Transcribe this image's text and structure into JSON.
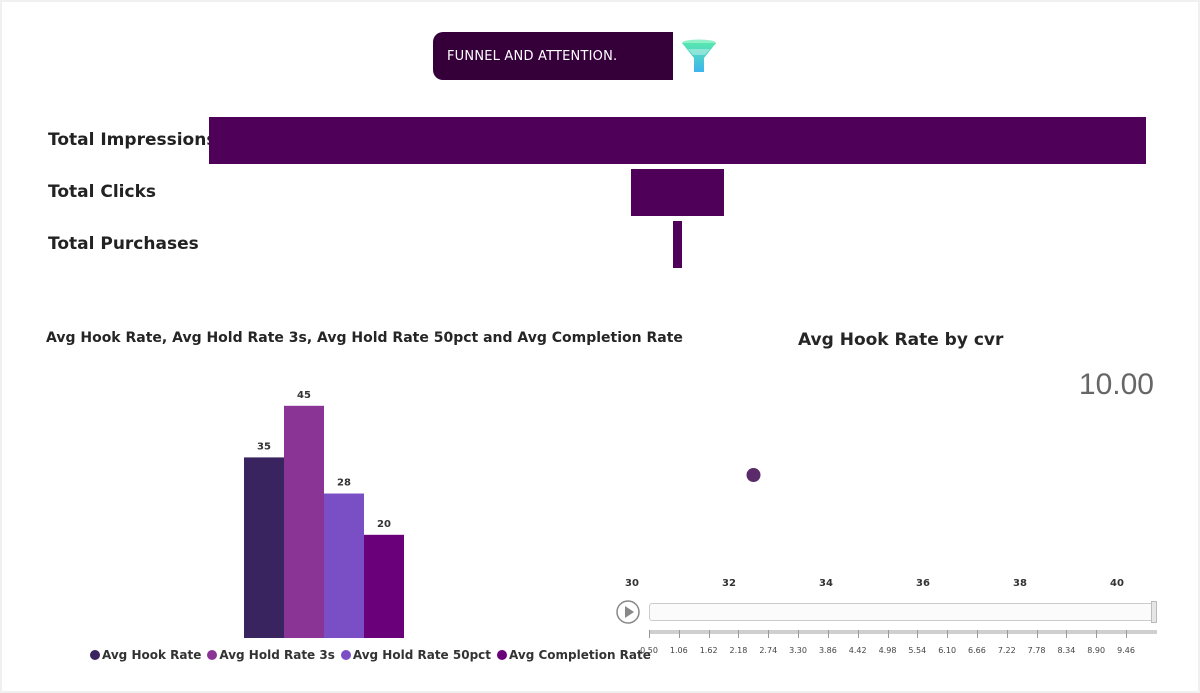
{
  "header": {
    "title": "FUNNEL AND ATTENTION.",
    "icon": "funnel-icon"
  },
  "funnel": {
    "color": "#4f0058",
    "items": [
      {
        "label": "Total Impressions",
        "share": 1.0
      },
      {
        "label": "Total Clicks",
        "share": 0.1
      },
      {
        "label": "Total Purchases",
        "share": 0.01
      }
    ]
  },
  "chart_data": [
    {
      "type": "bar",
      "title": "Avg Hook Rate, Avg Hold Rate 3s, Avg Hold Rate 50pct and Avg Completion Rate",
      "series": [
        {
          "name": "Avg Hook Rate",
          "value": 35,
          "color": "#3a2460"
        },
        {
          "name": "Avg Hold Rate 3s",
          "value": 45,
          "color": "#8a3496"
        },
        {
          "name": "Avg Hold Rate 50pct",
          "value": 28,
          "color": "#7a4ec4"
        },
        {
          "name": "Avg Completion Rate",
          "value": 20,
          "color": "#6a007a"
        }
      ],
      "ylim": [
        0,
        50
      ],
      "legend": "bottom"
    },
    {
      "type": "scatter",
      "title": "Avg Hook Rate by cvr",
      "value_display": "10.00",
      "x_ticks": [
        "30",
        "32",
        "34",
        "36",
        "38",
        "40"
      ],
      "xlim": [
        30,
        40
      ],
      "ylim": [
        0,
        20
      ],
      "points": [
        {
          "x": 32.5,
          "y": 10.0
        }
      ],
      "point_color": "#5a2a6a",
      "play_axis": {
        "ticks": [
          "0.50",
          "1.06",
          "1.62",
          "2.18",
          "2.74",
          "3.30",
          "3.86",
          "4.42",
          "4.98",
          "5.54",
          "6.10",
          "6.66",
          "7.22",
          "7.78",
          "8.34",
          "8.90",
          "9.46"
        ]
      }
    }
  ]
}
